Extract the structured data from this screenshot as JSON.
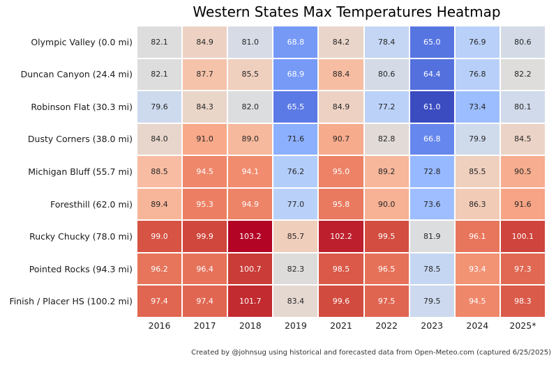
{
  "title": "Western States Max Temperatures Heatmap",
  "caption": "Created by @johnsug using historical and forecasted data from Open-Meteo.com (captured 6/25/2025)",
  "chart_data": {
    "type": "heatmap",
    "title": "Western States Max Temperatures Heatmap",
    "rows": [
      "Olympic Valley (0.0 mi)",
      "Duncan Canyon (24.4 mi)",
      "Robinson Flat (30.3 mi)",
      "Dusty Corners (38.0 mi)",
      "Michigan Bluff (55.7 mi)",
      "Foresthill (62.0 mi)",
      "Rucky Chucky (78.0 mi)",
      "Pointed Rocks (94.3 mi)",
      "Finish / Placer HS (100.2 mi)"
    ],
    "columns": [
      "2016",
      "2017",
      "2018",
      "2019",
      "2021",
      "2022",
      "2023",
      "2024",
      "2025*"
    ],
    "values": [
      [
        82.1,
        84.9,
        81.0,
        68.8,
        84.2,
        78.4,
        65.0,
        76.9,
        80.6
      ],
      [
        82.1,
        87.7,
        85.5,
        68.9,
        88.4,
        80.6,
        64.4,
        76.8,
        82.2
      ],
      [
        79.6,
        84.3,
        82.0,
        65.5,
        84.9,
        77.2,
        61.0,
        73.4,
        80.1
      ],
      [
        84.0,
        91.0,
        89.0,
        71.6,
        90.7,
        82.8,
        66.8,
        79.9,
        84.5
      ],
      [
        88.5,
        94.5,
        94.1,
        76.2,
        95.0,
        89.2,
        72.8,
        85.5,
        90.5
      ],
      [
        89.4,
        95.3,
        94.9,
        77.0,
        95.8,
        90.0,
        73.6,
        86.3,
        91.6
      ],
      [
        99.0,
        99.9,
        103.2,
        85.7,
        102.2,
        99.5,
        81.9,
        96.1,
        100.1
      ],
      [
        96.2,
        96.4,
        100.7,
        82.3,
        98.5,
        96.5,
        78.5,
        93.4,
        97.3
      ],
      [
        97.4,
        97.4,
        101.7,
        83.4,
        99.6,
        97.5,
        79.5,
        94.5,
        98.3
      ]
    ],
    "value_decimals": 1,
    "grid_on": false,
    "legend": "none",
    "colormap": {
      "name": "coolwarm",
      "vmin": 61.0,
      "vmax": 103.2,
      "gap_color": "#ffffff",
      "annotation_dark": "#262626",
      "annotation_light": "#ffffff",
      "luminance_threshold": 0.425,
      "stops": [
        [
          0.0,
          "#3b4cc0"
        ],
        [
          0.03125,
          "#445acc"
        ],
        [
          0.0625,
          "#4d68d7"
        ],
        [
          0.09375,
          "#5775e1"
        ],
        [
          0.125,
          "#6282ea"
        ],
        [
          0.15625,
          "#6c8ef1"
        ],
        [
          0.1875,
          "#779af7"
        ],
        [
          0.21875,
          "#82a5fb"
        ],
        [
          0.25,
          "#8db0fe"
        ],
        [
          0.28125,
          "#98b9ff"
        ],
        [
          0.3125,
          "#a3c2ff"
        ],
        [
          0.34375,
          "#aec9fd"
        ],
        [
          0.375,
          "#b8d0f9"
        ],
        [
          0.40625,
          "#c2d5f4"
        ],
        [
          0.4375,
          "#ccd9ee"
        ],
        [
          0.46875,
          "#d5dbe6"
        ],
        [
          0.5,
          "#dddddd"
        ],
        [
          0.53125,
          "#e5d8d1"
        ],
        [
          0.5625,
          "#ecd3c5"
        ],
        [
          0.59375,
          "#f1ccb9"
        ],
        [
          0.625,
          "#f5c4ad"
        ],
        [
          0.65625,
          "#f7bba0"
        ],
        [
          0.6875,
          "#f7b194"
        ],
        [
          0.71875,
          "#f7a687"
        ],
        [
          0.75,
          "#f49a7b"
        ],
        [
          0.78125,
          "#f18d6f"
        ],
        [
          0.8125,
          "#ec7f63"
        ],
        [
          0.84375,
          "#e57058"
        ],
        [
          0.875,
          "#de604d"
        ],
        [
          0.90625,
          "#d55042"
        ],
        [
          0.9375,
          "#cb3e38"
        ],
        [
          0.96875,
          "#c0282f"
        ],
        [
          1.0,
          "#b40426"
        ]
      ]
    }
  }
}
